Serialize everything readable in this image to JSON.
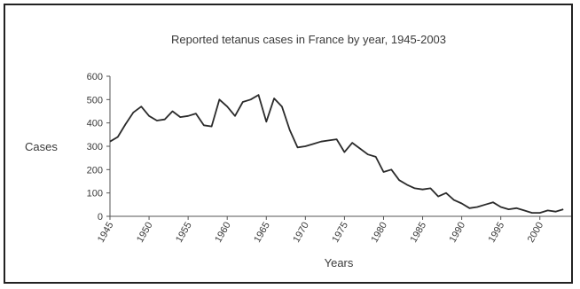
{
  "chart_data": {
    "type": "line",
    "title": "Reported tetanus cases in France by year, 1945-2003",
    "xlabel": "Years",
    "ylabel": "Cases",
    "xlim": [
      1945,
      2004
    ],
    "ylim": [
      0,
      600
    ],
    "x_ticks": [
      1945,
      1950,
      1955,
      1960,
      1965,
      1970,
      1975,
      1980,
      1985,
      1990,
      1995,
      2000
    ],
    "y_ticks": [
      0,
      100,
      200,
      300,
      400,
      500,
      600
    ],
    "grid": false,
    "series": [
      {
        "x": [
          1945,
          1946,
          1947,
          1948,
          1949,
          1950,
          1951,
          1952,
          1953,
          1954,
          1955,
          1956,
          1957,
          1958,
          1959,
          1960,
          1961,
          1962,
          1963,
          1964,
          1965,
          1966,
          1967,
          1968,
          1969,
          1970,
          1971,
          1972,
          1973,
          1974,
          1975,
          1976,
          1977,
          1978,
          1979,
          1980,
          1981,
          1982,
          1983,
          1984,
          1985,
          1986,
          1987,
          1988,
          1989,
          1990,
          1991,
          1992,
          1993,
          1994,
          1995,
          1996,
          1997,
          1998,
          1999,
          2000,
          2001,
          2002,
          2003
        ],
        "values": [
          320,
          340,
          395,
          445,
          470,
          430,
          410,
          415,
          450,
          425,
          430,
          440,
          390,
          385,
          500,
          470,
          430,
          490,
          500,
          520,
          405,
          505,
          470,
          370,
          295,
          300,
          310,
          320,
          325,
          330,
          275,
          315,
          290,
          265,
          255,
          190,
          200,
          155,
          135,
          120,
          115,
          120,
          85,
          100,
          70,
          55,
          35,
          40,
          50,
          60,
          40,
          30,
          35,
          25,
          15,
          15,
          25,
          20,
          30
        ]
      }
    ]
  }
}
